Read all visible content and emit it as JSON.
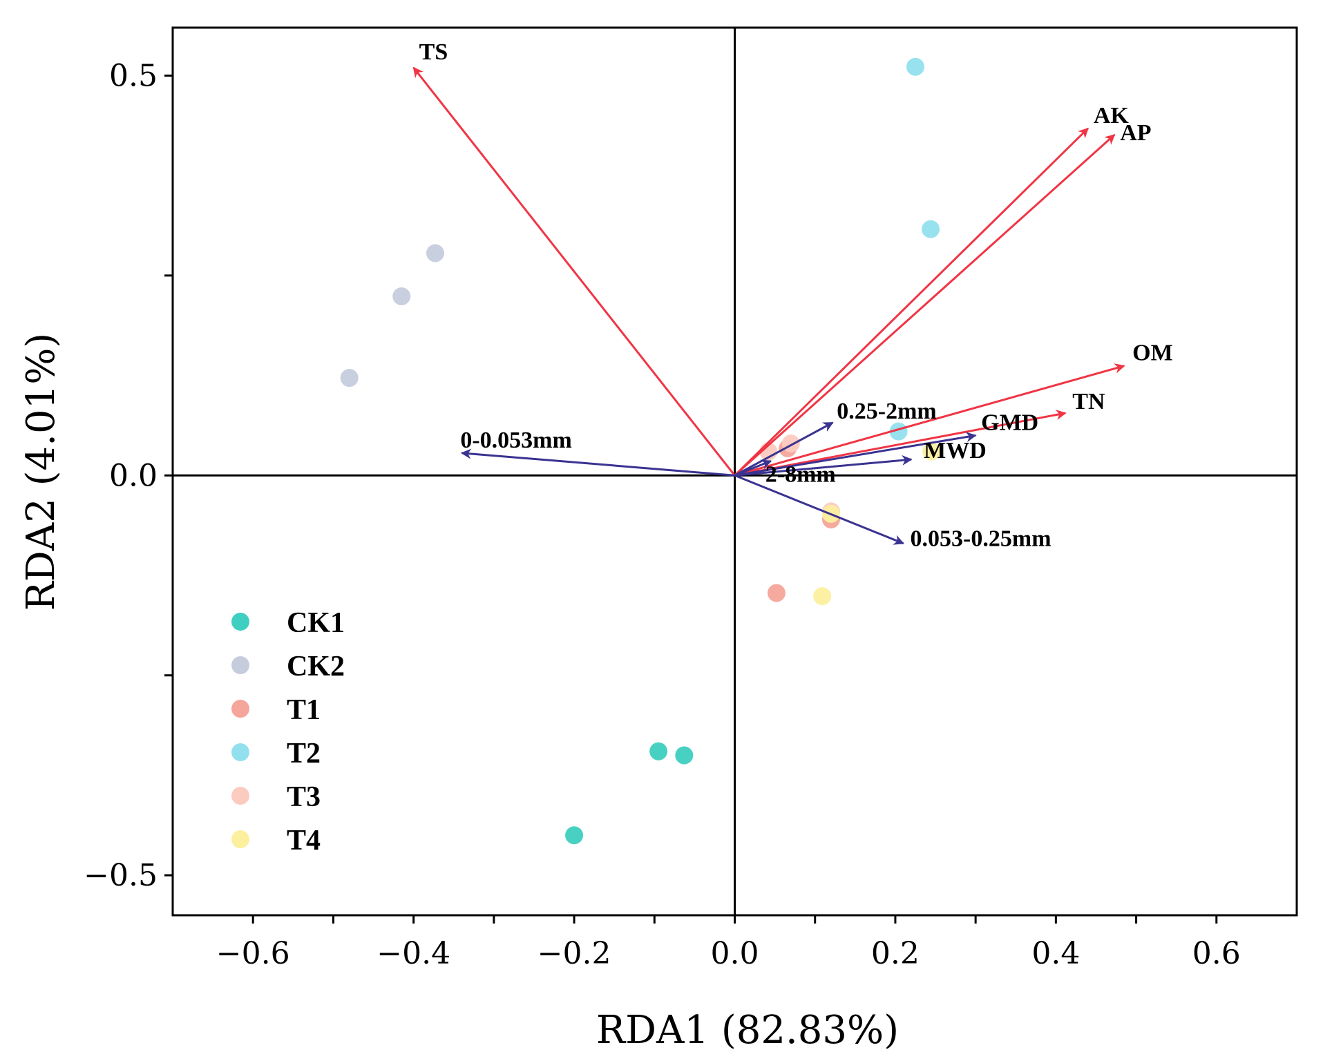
{
  "chart_data": {
    "type": "scatter",
    "subtype": "rda-biplot",
    "xlabel": "RDA1 (82.83%)",
    "ylabel": "RDA2 (4.01%)",
    "xlim": [
      -0.7,
      0.7
    ],
    "ylim": [
      -0.55,
      0.56
    ],
    "x_ticks": [
      -0.6,
      -0.5,
      -0.4,
      -0.3,
      -0.2,
      -0.1,
      0.0,
      0.1,
      0.2,
      0.3,
      0.4,
      0.5,
      0.6
    ],
    "x_tick_labels": [
      {
        "value": -0.6,
        "label": "−0.6"
      },
      {
        "value": -0.4,
        "label": "−0.4"
      },
      {
        "value": -0.2,
        "label": "−0.2"
      },
      {
        "value": 0.0,
        "label": "0.0"
      },
      {
        "value": 0.2,
        "label": "0.2"
      },
      {
        "value": 0.4,
        "label": "0.4"
      },
      {
        "value": 0.6,
        "label": "0.6"
      }
    ],
    "y_ticks": [
      -0.5,
      -0.25,
      0.0,
      0.25,
      0.5
    ],
    "y_tick_labels": [
      {
        "value": 0.5,
        "label": "0.5"
      },
      {
        "value": 0.0,
        "label": "0.0"
      },
      {
        "value": -0.5,
        "label": "−0.5"
      }
    ],
    "grid": false,
    "legend_position": "lower-left",
    "series": [
      {
        "name": "CK1",
        "color": "#3ecfc0",
        "points": [
          [
            -0.2,
            -0.45
          ],
          [
            -0.095,
            -0.345
          ],
          [
            -0.063,
            -0.35
          ]
        ]
      },
      {
        "name": "CK2",
        "color": "#c5ccdc",
        "points": [
          [
            -0.48,
            0.122
          ],
          [
            -0.415,
            0.224
          ],
          [
            -0.373,
            0.278
          ]
        ]
      },
      {
        "name": "T1",
        "color": "#f6a59a",
        "points": [
          [
            0.052,
            -0.147
          ],
          [
            0.12,
            -0.055
          ],
          [
            0.066,
            0.034
          ]
        ]
      },
      {
        "name": "T2",
        "color": "#92e0ee",
        "points": [
          [
            0.225,
            0.511
          ],
          [
            0.244,
            0.308
          ],
          [
            0.204,
            0.055
          ]
        ]
      },
      {
        "name": "T3",
        "color": "#fccbc0",
        "points": [
          [
            0.12,
            -0.045
          ],
          [
            0.042,
            0.03
          ],
          [
            0.07,
            0.04
          ]
        ]
      },
      {
        "name": "T4",
        "color": "#fcef9e",
        "points": [
          [
            0.109,
            -0.151
          ],
          [
            0.12,
            -0.048
          ],
          [
            0.245,
            0.03
          ]
        ]
      }
    ],
    "vectors": [
      {
        "name": "TS",
        "color": "#f03545",
        "x": -0.4,
        "y": 0.51
      },
      {
        "name": "AK",
        "color": "#f03545",
        "x": 0.44,
        "y": 0.434
      },
      {
        "name": "AP",
        "color": "#f03545",
        "x": 0.473,
        "y": 0.426
      },
      {
        "name": "OM",
        "color": "#f03545",
        "x": 0.485,
        "y": 0.137
      },
      {
        "name": "TN",
        "color": "#f03545",
        "x": 0.412,
        "y": 0.078
      },
      {
        "name": "GMD",
        "color": "#3a3391",
        "x": 0.3,
        "y": 0.05
      },
      {
        "name": "MWD",
        "color": "#3a3391",
        "x": 0.22,
        "y": 0.02
      },
      {
        "name": "0.25-2mm",
        "color": "#3a3391",
        "x": 0.122,
        "y": 0.066
      },
      {
        "name": "2-8mm",
        "color": "#3a3391",
        "x": 0.045,
        "y": 0.018
      },
      {
        "name": "0-0.053mm",
        "color": "#3a3391",
        "x": -0.34,
        "y": 0.028
      },
      {
        "name": "0.053-0.25mm",
        "color": "#3a3391",
        "x": 0.21,
        "y": -0.085
      }
    ]
  }
}
